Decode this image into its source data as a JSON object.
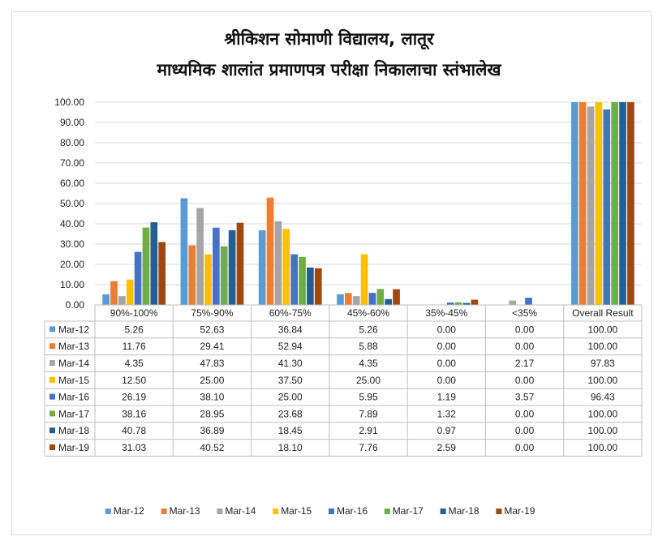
{
  "chart_data": {
    "type": "bar",
    "title": "श्रीकिशन सोमाणी विद्यालय, लातूर",
    "subtitle": "माध्यमिक शालांत प्रमाणपत्र परीक्षा निकालाचा स्तंभालेख",
    "categories": [
      "90%-100%",
      "75%-90%",
      "60%-75%",
      "45%-60%",
      "35%-45%",
      "<35%",
      "Overall Result"
    ],
    "y_ticks": [
      "0.00",
      "10.00",
      "20.00",
      "30.00",
      "40.00",
      "50.00",
      "60.00",
      "70.00",
      "80.00",
      "90.00",
      "100.00"
    ],
    "ylim": [
      0,
      100
    ],
    "grid": true,
    "legend_position": "bottom",
    "series": [
      {
        "name": "Mar-12",
        "color": "#5b9bd5",
        "values": [
          5.26,
          52.63,
          36.84,
          5.26,
          0.0,
          0.0,
          100.0
        ],
        "labels": [
          "5.26",
          "52.63",
          "36.84",
          "5.26",
          "0.00",
          "0.00",
          "100.00"
        ]
      },
      {
        "name": "Mar-13",
        "color": "#ed7d31",
        "values": [
          11.76,
          29.41,
          52.94,
          5.88,
          0.0,
          0.0,
          100.0
        ],
        "labels": [
          "11.76",
          "29.41",
          "52.94",
          "5.88",
          "0.00",
          "0.00",
          "100.00"
        ]
      },
      {
        "name": "Mar-14",
        "color": "#a5a5a5",
        "values": [
          4.35,
          47.83,
          41.3,
          4.35,
          0.0,
          2.17,
          97.83
        ],
        "labels": [
          "4.35",
          "47.83",
          "41.30",
          "4.35",
          "0.00",
          "2.17",
          "97.83"
        ]
      },
      {
        "name": "Mar-15",
        "color": "#ffc000",
        "values": [
          12.5,
          25.0,
          37.5,
          25.0,
          0.0,
          0.0,
          100.0
        ],
        "labels": [
          "12.50",
          "25.00",
          "37.50",
          "25.00",
          "0.00",
          "0.00",
          "100.00"
        ]
      },
      {
        "name": "Mar-16",
        "color": "#4472c4",
        "values": [
          26.19,
          38.1,
          25.0,
          5.95,
          1.19,
          3.57,
          96.43
        ],
        "labels": [
          "26.19",
          "38.10",
          "25.00",
          "5.95",
          "1.19",
          "3.57",
          "96.43"
        ]
      },
      {
        "name": "Mar-17",
        "color": "#70ad47",
        "values": [
          38.16,
          28.95,
          23.68,
          7.89,
          1.32,
          0.0,
          100.0
        ],
        "labels": [
          "38.16",
          "28.95",
          "23.68",
          "7.89",
          "1.32",
          "0.00",
          "100.00"
        ]
      },
      {
        "name": "Mar-18",
        "color": "#255e91",
        "values": [
          40.78,
          36.89,
          18.45,
          2.91,
          0.97,
          0.0,
          100.0
        ],
        "labels": [
          "40.78",
          "36.89",
          "18.45",
          "2.91",
          "0.97",
          "0.00",
          "100.00"
        ]
      },
      {
        "name": "Mar-19",
        "color": "#9e480e",
        "values": [
          31.03,
          40.52,
          18.1,
          7.76,
          2.59,
          0.0,
          100.0
        ],
        "labels": [
          "31.03",
          "40.52",
          "18.10",
          "7.76",
          "2.59",
          "0.00",
          "100.00"
        ]
      }
    ]
  }
}
